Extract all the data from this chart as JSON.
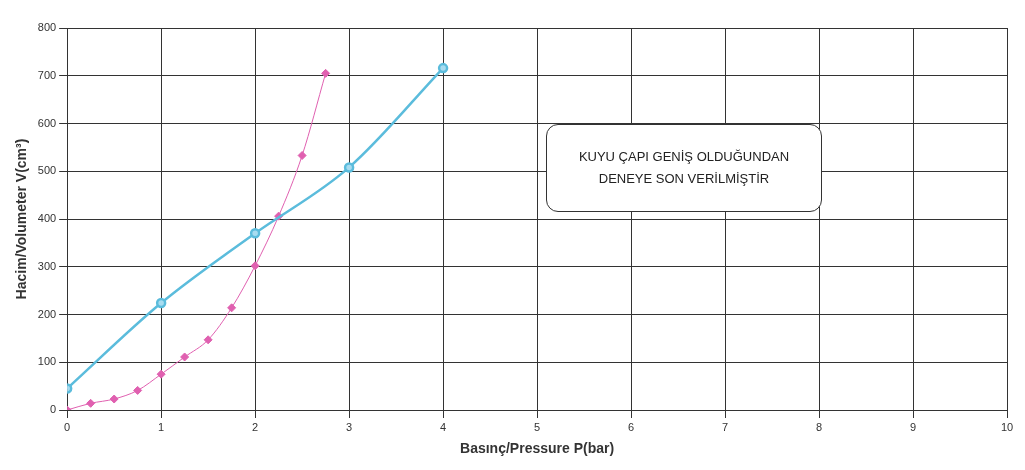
{
  "chart_data": {
    "type": "line",
    "xlabel": "Basınç/Pressure P(bar)",
    "ylabel": "Hacim/Volumeter V(cm³)",
    "xlim": [
      0,
      10
    ],
    "xticks": [
      0,
      1,
      2,
      3,
      4,
      5,
      6,
      7,
      8,
      9,
      10
    ],
    "ylim": [
      0,
      800
    ],
    "yticks": [
      0,
      100,
      200,
      300,
      400,
      500,
      600,
      700,
      800
    ],
    "grid": true,
    "series": [
      {
        "color": "#5bbcdc",
        "marker": "circle",
        "x": [
          0,
          1,
          2,
          3,
          4
        ],
        "values": [
          45,
          224,
          370,
          508,
          716
        ]
      },
      {
        "color": "#e060b0",
        "marker": "diamond",
        "x": [
          0,
          0.25,
          0.5,
          0.75,
          1,
          1.25,
          1.5,
          1.75,
          2,
          2.25,
          2.5,
          2.75
        ],
        "values": [
          0,
          14,
          23,
          41,
          75,
          111,
          147,
          214,
          302,
          406,
          533,
          705
        ]
      }
    ],
    "annotations": [
      "KUYU ÇAPI GENİŞ OLDUĞUNDAN\nDENEYE SON VERİLMİŞTİR"
    ]
  }
}
